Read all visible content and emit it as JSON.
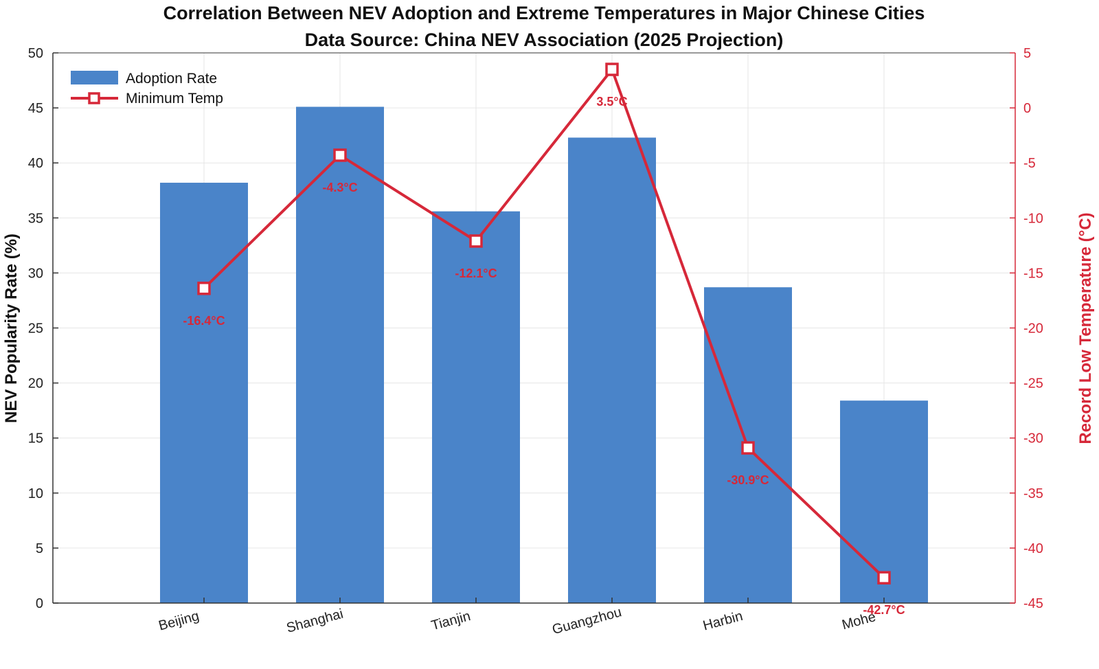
{
  "chart_data": {
    "type": "bar",
    "title": "Correlation Between NEV Adoption and Extreme Temperatures in Major Chinese Cities",
    "subtitle": "Data Source: China NEV Association (2025 Projection)",
    "categories": [
      "Beijing",
      "Shanghai",
      "Tianjin",
      "Guangzhou",
      "Harbin",
      "Mohe"
    ],
    "series": [
      {
        "name": "Adoption Rate",
        "type": "bar",
        "axis": "left",
        "color": "#4a84c9",
        "values": [
          38.2,
          45.1,
          35.6,
          42.3,
          28.7,
          18.4
        ]
      },
      {
        "name": "Minimum Temp",
        "type": "line",
        "axis": "right",
        "color": "#d62839",
        "values": [
          -16.4,
          -4.3,
          -12.1,
          3.5,
          -30.9,
          -42.7
        ],
        "labels": [
          "-16.4°C",
          "-4.3°C",
          "-12.1°C",
          "3.5°C",
          "-30.9°C",
          "-42.7°C"
        ]
      }
    ],
    "ylabel": "NEV Popularity Rate (%)",
    "ylim": [
      0,
      50
    ],
    "yticks": [
      0,
      5,
      10,
      15,
      20,
      25,
      30,
      35,
      40,
      45,
      50
    ],
    "y2label": "Record Low Temperature (°C)",
    "y2lim": [
      -45,
      5
    ],
    "y2ticks": [
      -45,
      -40,
      -35,
      -30,
      -25,
      -20,
      -15,
      -10,
      -5,
      0,
      5
    ],
    "grid": true,
    "legend_position": "top-left"
  }
}
